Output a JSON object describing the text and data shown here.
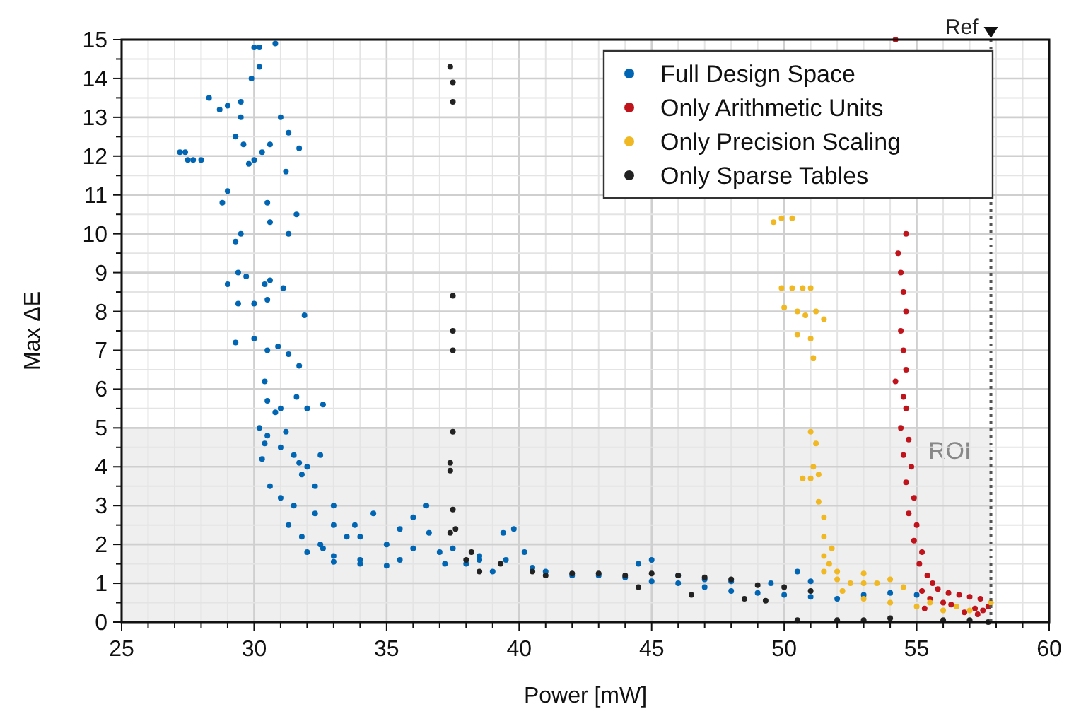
{
  "chart_data": {
    "type": "scatter",
    "xlabel": "Power [mW]",
    "ylabel": "Max ΔE",
    "xlim": [
      25,
      60
    ],
    "ylim": [
      0,
      15
    ],
    "xticks": [
      25,
      {
        "value": 26,
        "label": null
      },
      {
        "value": 27,
        "label": null
      },
      {
        "value": 28,
        "label": null
      },
      {
        "value": 29,
        "label": null
      },
      30,
      {
        "value": 31,
        "label": null
      },
      {
        "value": 32,
        "label": null
      },
      {
        "value": 33,
        "label": null
      },
      {
        "value": 34,
        "label": null
      },
      35,
      {
        "value": 36,
        "label": null
      },
      {
        "value": 37,
        "label": null
      },
      {
        "value": 38,
        "label": null
      },
      {
        "value": 39,
        "label": null
      },
      40,
      {
        "value": 41,
        "label": null
      },
      {
        "value": 42,
        "label": null
      },
      {
        "value": 43,
        "label": null
      },
      {
        "value": 44,
        "label": null
      },
      45,
      {
        "value": 46,
        "label": null
      },
      {
        "value": 47,
        "label": null
      },
      {
        "value": 48,
        "label": null
      },
      {
        "value": 49,
        "label": null
      },
      50,
      {
        "value": 51,
        "label": null
      },
      {
        "value": 52,
        "label": null
      },
      {
        "value": 53,
        "label": null
      },
      {
        "value": 54,
        "label": null
      },
      55,
      {
        "value": 56,
        "label": null
      },
      {
        "value": 57,
        "label": null
      },
      {
        "value": 58,
        "label": null
      },
      {
        "value": 59,
        "label": null
      },
      60
    ],
    "yticks": [
      0,
      {
        "value": 0.5,
        "label": null
      },
      1,
      {
        "value": 1.5,
        "label": null
      },
      2,
      {
        "value": 2.5,
        "label": null
      },
      3,
      {
        "value": 3.5,
        "label": null
      },
      4,
      {
        "value": 4.5,
        "label": null
      },
      5,
      {
        "value": 5.5,
        "label": null
      },
      6,
      {
        "value": 6.5,
        "label": null
      },
      7,
      {
        "value": 7.5,
        "label": null
      },
      8,
      {
        "value": 8.5,
        "label": null
      },
      9,
      {
        "value": 9.5,
        "label": null
      },
      10,
      {
        "value": 10.5,
        "label": null
      },
      11,
      {
        "value": 11.5,
        "label": null
      },
      12,
      {
        "value": 12.5,
        "label": null
      },
      13,
      {
        "value": 13.5,
        "label": null
      },
      14,
      {
        "value": 14.5,
        "label": null
      },
      15
    ],
    "grid": true,
    "legend": "top right",
    "marker": "circle",
    "ref_lines": [
      {
        "axis": "x",
        "value": 57.8,
        "label": "Ref",
        "line_style": "dotted",
        "color": "#555555"
      }
    ],
    "bands": [
      {
        "axis": "y",
        "from": 0,
        "to": 5,
        "label": "ROI",
        "color": "#efefef"
      }
    ],
    "series": [
      {
        "name": "Full Design Space",
        "color": "#0066b3",
        "x": [
          27.2,
          27.4,
          27.5,
          27.7,
          28,
          28.3,
          28.7,
          29,
          29.5,
          29.5,
          30,
          30.2,
          30.8,
          29.9,
          30.2,
          29.3,
          29.6,
          29.8,
          30,
          30.3,
          30.6,
          31,
          31.3,
          31.2,
          31.7,
          29,
          28.8,
          29.5,
          29.3,
          30.5,
          30.6,
          31.6,
          31.3,
          29.4,
          29.7,
          30.6,
          30.4,
          29,
          29.4,
          30,
          30.5,
          31.1,
          31.9,
          29.3,
          30,
          30.5,
          30.9,
          31.3,
          31.7,
          30.4,
          30.5,
          30.8,
          31,
          31.6,
          32,
          32.6,
          30.2,
          30.5,
          31,
          30.3,
          31.5,
          32,
          30.6,
          31,
          31.5,
          32.3,
          33,
          31.3,
          31.8,
          32.5,
          33.5,
          32,
          33,
          34,
          34,
          35,
          35.5,
          36,
          36.5,
          36.6,
          37,
          37.2,
          38,
          38.5,
          39.4,
          39.8,
          40.2,
          40.5,
          39,
          41,
          42,
          43,
          44,
          45,
          46,
          47,
          48,
          49,
          50,
          51,
          52,
          53,
          54,
          55,
          44.5,
          45,
          46,
          47,
          48,
          49.5,
          50.5,
          51,
          36,
          37.5,
          38.5,
          39.5,
          35,
          34,
          33,
          32.6,
          31.8,
          32.3,
          33,
          33.8,
          34.5,
          35.5,
          30.4,
          31.2,
          31.7,
          32.5
        ],
        "values": [
          12.1,
          12.1,
          11.9,
          11.9,
          11.9,
          13.5,
          13.2,
          13.3,
          13.4,
          13,
          14.8,
          14.8,
          14.9,
          14,
          14.3,
          12.5,
          12.3,
          11.8,
          11.9,
          12.1,
          12.3,
          13,
          12.6,
          11.6,
          12.2,
          11.1,
          10.8,
          10,
          9.8,
          10.8,
          10.3,
          10.5,
          10,
          9,
          8.9,
          8.8,
          8.7,
          8.7,
          8.2,
          8.2,
          8.3,
          8.6,
          7.9,
          7.2,
          7.3,
          7,
          7.1,
          6.9,
          6.6,
          6.2,
          5.7,
          5.4,
          5.5,
          5.8,
          5.5,
          5.6,
          5,
          4.8,
          4.5,
          4.2,
          4.3,
          4,
          3.5,
          3.2,
          3,
          2.8,
          2.5,
          2.5,
          2.2,
          2,
          2.2,
          1.8,
          1.7,
          1.6,
          2.2,
          2,
          1.6,
          2.7,
          3,
          2.3,
          1.8,
          1.5,
          1.5,
          1.6,
          2.3,
          2.4,
          1.8,
          1.4,
          1.3,
          1.3,
          1.2,
          1.2,
          1.15,
          1.05,
          1,
          0.9,
          0.8,
          0.75,
          0.7,
          0.65,
          0.6,
          0.7,
          0.75,
          0.7,
          1.5,
          1.6,
          1.2,
          1.1,
          1.05,
          1,
          1.3,
          1.05,
          1.9,
          1.9,
          1.7,
          1.6,
          1.45,
          1.5,
          1.55,
          1.9,
          3.8,
          3.5,
          3,
          2.5,
          2.8,
          2.4,
          4.6,
          4.9,
          4.1,
          4.3
        ]
      },
      {
        "name": "Only Arithmetic Units",
        "color": "#c0141c",
        "x": [
          54.2,
          54.6,
          54.3,
          54.4,
          54.5,
          54.6,
          54.4,
          54.5,
          54.6,
          54.2,
          54.5,
          54.6,
          54.4,
          54.7,
          54.5,
          54.8,
          54.6,
          54.9,
          54.7,
          55,
          54.9,
          55.2,
          55.1,
          55.4,
          55.6,
          55.8,
          56.2,
          56.6,
          57,
          57.4,
          55.5,
          56,
          56.3,
          57.2,
          57.5,
          57.7,
          55.2,
          55.3,
          56.8,
          57.3
        ],
        "values": [
          15,
          10,
          9.5,
          9,
          8.5,
          8,
          7.5,
          7,
          6.5,
          6.2,
          5.8,
          5.5,
          5,
          4.7,
          4.3,
          4,
          3.6,
          3.2,
          2.8,
          2.5,
          2.1,
          1.8,
          1.5,
          1.2,
          1,
          0.85,
          0.75,
          0.7,
          0.65,
          0.6,
          0.6,
          0.5,
          0.45,
          0.35,
          0.3,
          0.4,
          0.8,
          0.35,
          0.25,
          0.2
        ]
      },
      {
        "name": "Only Precision Scaling",
        "color": "#f0b823",
        "x": [
          49.6,
          49.9,
          50.3,
          49.9,
          50.3,
          50.7,
          51,
          50,
          50.5,
          50.8,
          51.2,
          51.5,
          50.5,
          51,
          51.1,
          51,
          51.2,
          51.1,
          51.3,
          50.7,
          51,
          51.3,
          51.5,
          51.5,
          51.5,
          51.7,
          51.5,
          52,
          52.5,
          53,
          53.5,
          52.2,
          53,
          54,
          55,
          56,
          57,
          57.8,
          51.8,
          52,
          53,
          54,
          54.5,
          55.5,
          56.5
        ],
        "values": [
          10.3,
          10.4,
          10.4,
          8.6,
          8.6,
          8.6,
          8.6,
          8.1,
          8,
          7.9,
          8,
          7.8,
          7.4,
          7.3,
          6.8,
          4.9,
          4.6,
          4,
          3.8,
          3.7,
          3.7,
          3.1,
          2.7,
          2.2,
          1.7,
          1.5,
          1.3,
          1.1,
          1,
          1,
          1,
          0.8,
          0.6,
          0.5,
          0.4,
          0.3,
          0.3,
          0.5,
          1.9,
          1.3,
          1.25,
          1.1,
          0.9,
          0.5,
          0.4
        ]
      },
      {
        "name": "Only Sparse Tables",
        "color": "#222222",
        "x": [
          37.4,
          37.5,
          37.5,
          37.5,
          37.5,
          37.5,
          37.5,
          37.4,
          37.4,
          37.5,
          37.6,
          37.4,
          38,
          38.2,
          38.5,
          39.3,
          40.5,
          41,
          42,
          43,
          44,
          45,
          46,
          47,
          48,
          49,
          50,
          51,
          44.5,
          46.5,
          48.5,
          49.3,
          50.5,
          52,
          53,
          54,
          56,
          57,
          57.7
        ],
        "values": [
          14.3,
          13.9,
          13.4,
          8.4,
          7.5,
          7,
          4.9,
          4.1,
          3.9,
          2.9,
          2.4,
          2.3,
          1.6,
          1.8,
          1.3,
          1.5,
          1.3,
          1.2,
          1.25,
          1.25,
          1.2,
          1.25,
          1.2,
          1.15,
          1.1,
          0.95,
          0.9,
          0.8,
          0.9,
          0.7,
          0.6,
          0.55,
          0.05,
          0.05,
          0.05,
          0.1,
          0.05,
          0.05,
          0
        ]
      }
    ]
  }
}
